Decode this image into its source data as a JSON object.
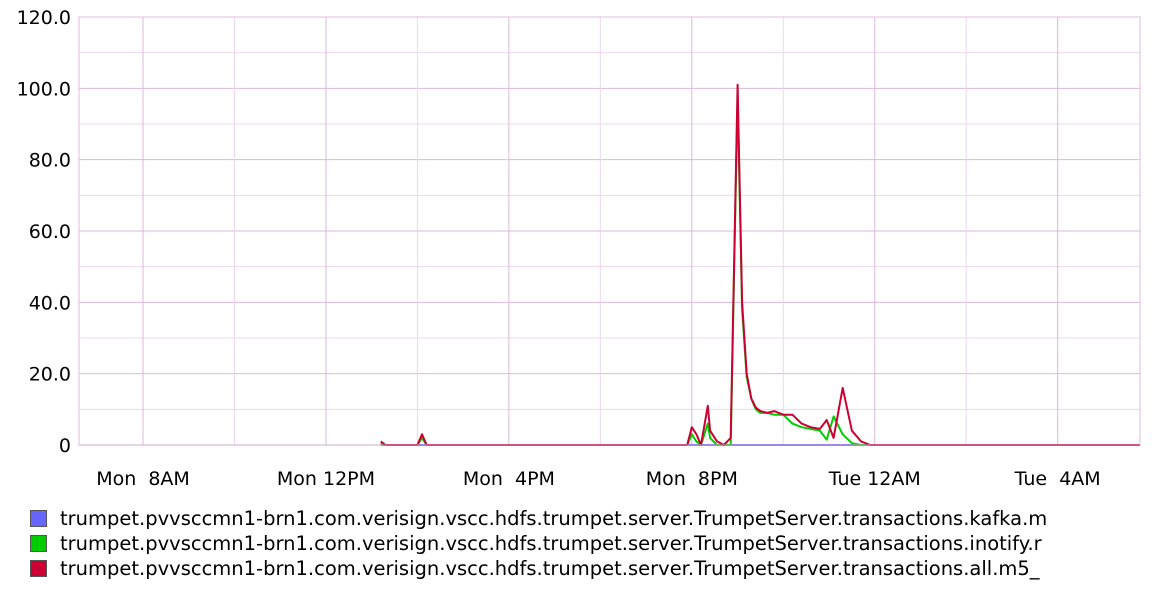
{
  "chart_data": {
    "type": "line",
    "title": "",
    "xlabel": "",
    "ylabel": "",
    "ylim": [
      0,
      120
    ],
    "y_ticks": [
      "120.0",
      "100.0",
      "80.0",
      "60.0",
      "40.0",
      "20.0",
      "0"
    ],
    "y_tick_values": [
      120,
      100,
      80,
      60,
      40,
      20,
      0
    ],
    "xlim_hours": [
      6.6,
      29.8
    ],
    "x_ticks": [
      {
        "label": "Mon  8AM",
        "hour": 8
      },
      {
        "label": "Mon 12PM",
        "hour": 12
      },
      {
        "label": "Mon  4PM",
        "hour": 16
      },
      {
        "label": "Mon  8PM",
        "hour": 20
      },
      {
        "label": "Tue 12AM",
        "hour": 24
      },
      {
        "label": "Tue  4AM",
        "hour": 28
      }
    ],
    "grid": true,
    "legend_position": "bottom",
    "series": [
      {
        "name": "trumpet.pvvsccmn1-brn1.com.verisign.vscc.hdfs.trumpet.server.TrumpetServer.transactions.kafka.m",
        "color": "#6666ff",
        "x": [
          13.2,
          29.8
        ],
        "y": [
          0,
          0
        ]
      },
      {
        "name": "trumpet.pvvsccmn1-brn1.com.verisign.vscc.hdfs.trumpet.server.TrumpetServer.transactions.inotify.r",
        "color": "#00cc00",
        "x": [
          13.2,
          13.3,
          14.0,
          14.1,
          14.2,
          19.9,
          20.0,
          20.1,
          20.2,
          20.35,
          20.4,
          20.55,
          20.7,
          20.85,
          21.0,
          21.1,
          21.2,
          21.3,
          21.4,
          21.5,
          21.65,
          21.8,
          22.0,
          22.2,
          22.4,
          22.6,
          22.8,
          22.95,
          23.1,
          23.3,
          23.5,
          23.7,
          23.9,
          23.95,
          24.05,
          24.2,
          24.4,
          29.8
        ],
        "y": [
          0.5,
          0,
          0,
          2,
          0,
          0,
          3,
          1,
          0,
          6,
          2,
          0,
          0,
          0,
          98,
          38,
          19,
          13,
          10,
          9,
          9,
          8.5,
          8.5,
          6,
          5,
          4.5,
          4,
          1.5,
          8,
          3,
          0.5,
          0,
          0,
          0,
          0,
          0,
          0,
          0
        ]
      },
      {
        "name": "trumpet.pvvsccmn1-brn1.com.verisign.vscc.hdfs.trumpet.server.TrumpetServer.transactions.all.m5_",
        "color": "#cc0033",
        "x": [
          13.2,
          13.3,
          14.0,
          14.1,
          14.2,
          19.9,
          20.0,
          20.1,
          20.2,
          20.35,
          20.4,
          20.55,
          20.7,
          20.85,
          21.0,
          21.1,
          21.2,
          21.3,
          21.4,
          21.5,
          21.65,
          21.8,
          22.0,
          22.2,
          22.4,
          22.6,
          22.8,
          22.95,
          23.1,
          23.3,
          23.5,
          23.7,
          23.9,
          23.95,
          24.05,
          24.2,
          24.4,
          29.8
        ],
        "y": [
          1,
          0,
          0,
          3,
          0,
          0,
          5,
          3,
          0,
          11,
          4,
          1,
          0,
          2,
          101,
          40,
          20,
          13,
          10.5,
          9.5,
          9,
          9.5,
          8.5,
          8.5,
          6,
          5,
          4.5,
          7,
          2,
          16,
          4,
          1,
          0,
          0,
          0,
          0,
          0,
          0
        ]
      }
    ]
  }
}
